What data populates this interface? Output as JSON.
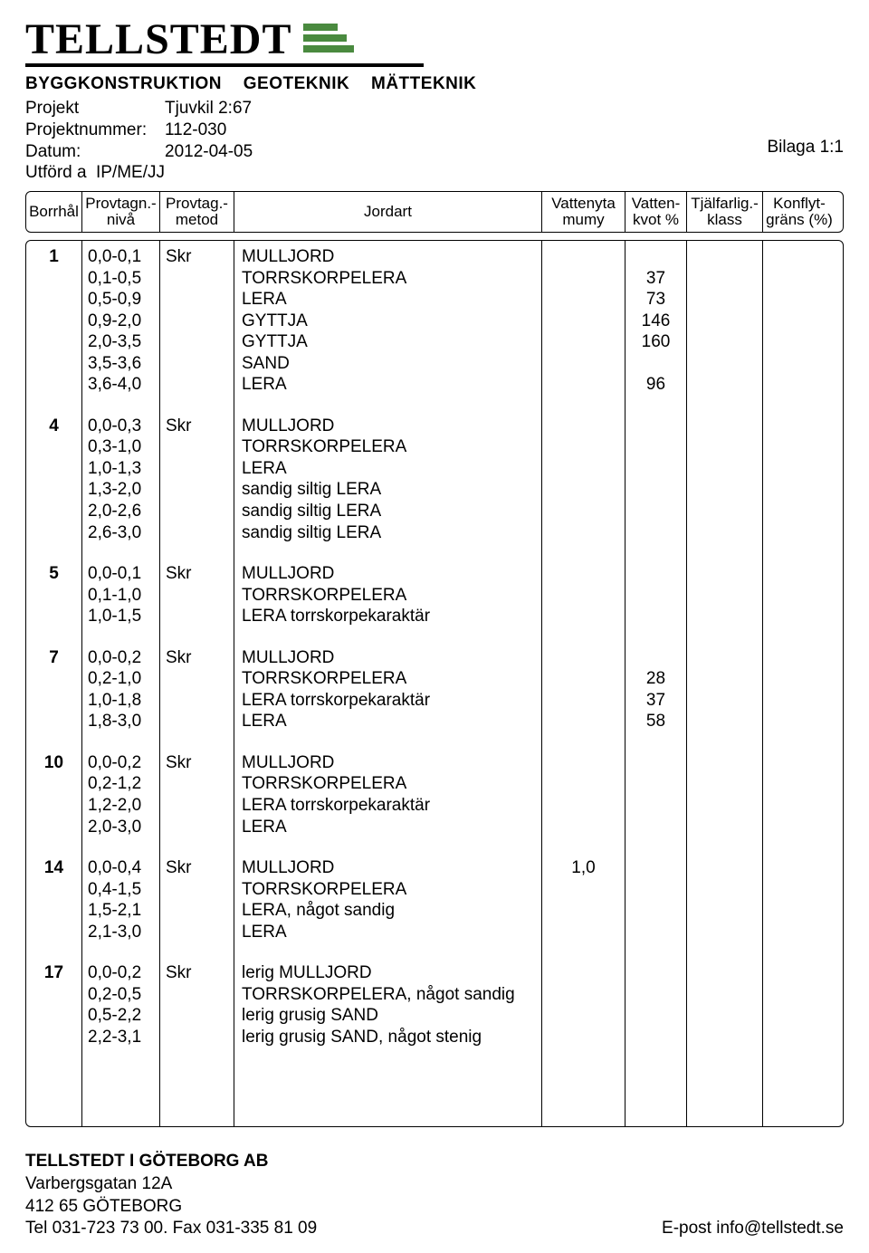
{
  "logo": {
    "name": "TELLSTEDT",
    "subline": "BYGGKONSTRUKTION GEOTEKNIK MÄTTEKNIK",
    "bar_color": "#4a8a3f"
  },
  "meta": {
    "projekt_label": "Projekt",
    "projekt_value": "Tjuvkil 2:67",
    "projektnummer_label": "Projektnummer:",
    "projektnummer_value": "112-030",
    "datum_label": "Datum:",
    "datum_value": "2012-04-05",
    "utford_label": "Utförd a",
    "utford_value": "IP/ME/JJ",
    "bilaga": "Bilaga 1:1"
  },
  "headers": {
    "borrhal": "Borrhål",
    "niva": "Provtagn.-\nnivå",
    "metod": "Provtag.-\nmetod",
    "jordart": "Jordart",
    "vattenyta": "Vattenyta\nmumy",
    "vattenkvot": "Vatten-\nkvot %",
    "tjalfarlig": "Tjälfarlig.-\nklass",
    "konflyt": "Konflyt-\ngräns (%)"
  },
  "groups": [
    {
      "borrhal": "1",
      "metod": "Skr",
      "rows": [
        {
          "niva": "0,0-0,1",
          "jordart": "MULLJORD",
          "vy": "",
          "vkvot": ""
        },
        {
          "niva": "0,1-0,5",
          "jordart": "TORRSKORPELERA",
          "vy": "",
          "vkvot": "37"
        },
        {
          "niva": "0,5-0,9",
          "jordart": "LERA",
          "vy": "",
          "vkvot": "73"
        },
        {
          "niva": "0,9-2,0",
          "jordart": "GYTTJA",
          "vy": "",
          "vkvot": "146"
        },
        {
          "niva": "2,0-3,5",
          "jordart": "GYTTJA",
          "vy": "",
          "vkvot": "160"
        },
        {
          "niva": "3,5-3,6",
          "jordart": "SAND",
          "vy": "",
          "vkvot": ""
        },
        {
          "niva": "3,6-4,0",
          "jordart": "LERA",
          "vy": "",
          "vkvot": "96"
        }
      ]
    },
    {
      "borrhal": "4",
      "metod": "Skr",
      "rows": [
        {
          "niva": "0,0-0,3",
          "jordart": "MULLJORD",
          "vy": "",
          "vkvot": ""
        },
        {
          "niva": "0,3-1,0",
          "jordart": "TORRSKORPELERA",
          "vy": "",
          "vkvot": ""
        },
        {
          "niva": "1,0-1,3",
          "jordart": "LERA",
          "vy": "",
          "vkvot": ""
        },
        {
          "niva": "1,3-2,0",
          "jordart": "sandig siltig LERA",
          "vy": "",
          "vkvot": ""
        },
        {
          "niva": "2,0-2,6",
          "jordart": "sandig siltig LERA",
          "vy": "",
          "vkvot": ""
        },
        {
          "niva": "2,6-3,0",
          "jordart": "sandig siltig LERA",
          "vy": "",
          "vkvot": ""
        }
      ]
    },
    {
      "borrhal": "5",
      "metod": "Skr",
      "rows": [
        {
          "niva": "0,0-0,1",
          "jordart": "MULLJORD",
          "vy": "",
          "vkvot": ""
        },
        {
          "niva": "0,1-1,0",
          "jordart": "TORRSKORPELERA",
          "vy": "",
          "vkvot": ""
        },
        {
          "niva": "1,0-1,5",
          "jordart": "LERA torrskorpekaraktär",
          "vy": "",
          "vkvot": ""
        }
      ]
    },
    {
      "borrhal": "7",
      "metod": "Skr",
      "rows": [
        {
          "niva": "0,0-0,2",
          "jordart": "MULLJORD",
          "vy": "",
          "vkvot": ""
        },
        {
          "niva": "0,2-1,0",
          "jordart": "TORRSKORPELERA",
          "vy": "",
          "vkvot": "28"
        },
        {
          "niva": "1,0-1,8",
          "jordart": "LERA torrskorpekaraktär",
          "vy": "",
          "vkvot": "37"
        },
        {
          "niva": "1,8-3,0",
          "jordart": "LERA",
          "vy": "",
          "vkvot": "58"
        }
      ]
    },
    {
      "borrhal": "10",
      "metod": "Skr",
      "rows": [
        {
          "niva": "0,0-0,2",
          "jordart": "MULLJORD",
          "vy": "",
          "vkvot": ""
        },
        {
          "niva": "0,2-1,2",
          "jordart": "TORRSKORPELERA",
          "vy": "",
          "vkvot": ""
        },
        {
          "niva": "1,2-2,0",
          "jordart": "LERA torrskorpekaraktär",
          "vy": "",
          "vkvot": ""
        },
        {
          "niva": "2,0-3,0",
          "jordart": "LERA",
          "vy": "",
          "vkvot": ""
        }
      ]
    },
    {
      "borrhal": "14",
      "metod": "Skr",
      "rows": [
        {
          "niva": "0,0-0,4",
          "jordart": "MULLJORD",
          "vy": "1,0",
          "vkvot": ""
        },
        {
          "niva": "0,4-1,5",
          "jordart": "TORRSKORPELERA",
          "vy": "",
          "vkvot": ""
        },
        {
          "niva": "1,5-2,1",
          "jordart": "LERA, något sandig",
          "vy": "",
          "vkvot": ""
        },
        {
          "niva": "2,1-3,0",
          "jordart": "LERA",
          "vy": "",
          "vkvot": ""
        }
      ]
    },
    {
      "borrhal": "17",
      "metod": "Skr",
      "rows": [
        {
          "niva": "0,0-0,2",
          "jordart": "lerig MULLJORD",
          "vy": "",
          "vkvot": ""
        },
        {
          "niva": "0,2-0,5",
          "jordart": "TORRSKORPELERA, något sandig",
          "vy": "",
          "vkvot": ""
        },
        {
          "niva": "0,5-2,2",
          "jordart": "lerig grusig SAND",
          "vy": "",
          "vkvot": ""
        },
        {
          "niva": "2,2-3,1",
          "jordart": "lerig grusig SAND, något stenig",
          "vy": "",
          "vkvot": ""
        }
      ]
    }
  ],
  "footer": {
    "company": "TELLSTEDT I GÖTEBORG AB",
    "addr1": "Varbergsgatan 12A",
    "addr2": "412 65 GÖTEBORG",
    "tel": "Tel 031-723 73 00. Fax 031-335 81 09",
    "email": "E-post info@tellstedt.se"
  }
}
